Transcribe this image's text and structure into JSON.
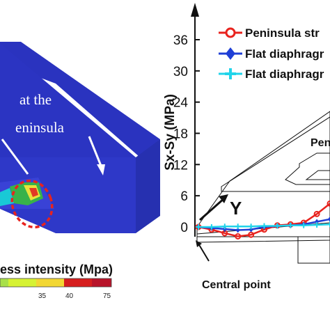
{
  "left_panel": {
    "annotation_line1": "at the",
    "annotation_line2": "eninsula",
    "colorbar_title": "ess intensity (Mpa)",
    "colorbar_ticks": [
      "35",
      "40",
      "75"
    ]
  },
  "colors": {
    "block_blue": "#2a33bf",
    "series_red": "#e8231e",
    "series_blue": "#1f3fd6",
    "series_cyan": "#21d4ea"
  },
  "chart_data": {
    "type": "line",
    "ylabel": "Sx-Sy (MPa)",
    "yticks": [
      "0",
      "6",
      "12",
      "18",
      "24",
      "30",
      "36"
    ],
    "ylim": [
      0,
      40
    ],
    "series": [
      {
        "name": "Peninsula str",
        "color": "#e8231e",
        "marker": "circle",
        "x": [
          0,
          0.1,
          0.2,
          0.3,
          0.4,
          0.5,
          0.6,
          0.7,
          0.8,
          0.9,
          1.0
        ],
        "y": [
          0,
          -0.5,
          -1.2,
          -1.8,
          -1.5,
          -0.5,
          0.3,
          0.5,
          0.8,
          2.5,
          4.5
        ]
      },
      {
        "name": "Flat diaphragr",
        "color": "#1f3fd6",
        "marker": "diamond",
        "x": [
          0,
          0.1,
          0.2,
          0.3,
          0.4,
          0.5,
          0.6,
          0.7,
          0.8,
          0.9,
          1.0
        ],
        "y": [
          0,
          -0.2,
          -0.4,
          -0.6,
          -0.5,
          0.0,
          0.2,
          0.3,
          0.5,
          1.0,
          1.5
        ]
      },
      {
        "name": "Flat diaphragr",
        "color": "#21d4ea",
        "marker": "cross",
        "x": [
          0,
          0.1,
          0.2,
          0.3,
          0.4,
          0.5,
          0.6,
          0.7,
          0.8,
          0.9,
          1.0
        ],
        "y": [
          0,
          0,
          0.1,
          0.1,
          0.1,
          0.2,
          0.2,
          0.3,
          0.3,
          0.4,
          0.5
        ]
      }
    ],
    "labels": {
      "peninsula_label": "Pen",
      "y_axis_label": "Y",
      "central_point": "Central point"
    }
  }
}
